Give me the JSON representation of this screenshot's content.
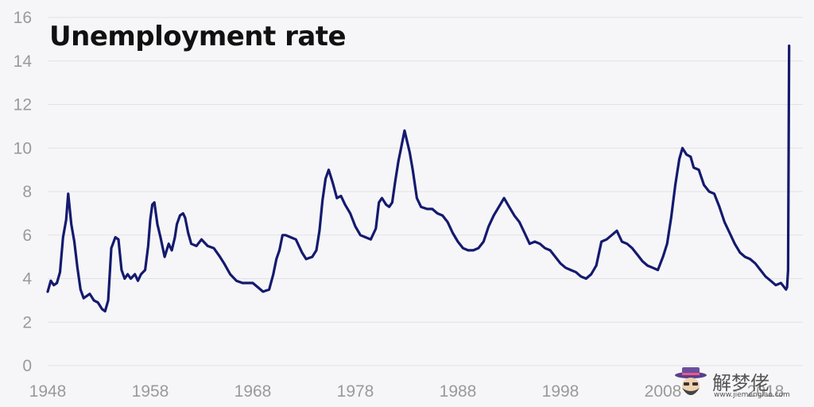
{
  "chart_data": {
    "type": "line",
    "title": "Unemployment rate",
    "xlabel": "",
    "ylabel": "",
    "xlim": [
      1948,
      2020.4
    ],
    "ylim": [
      0,
      16
    ],
    "yticks": [
      0,
      2,
      4,
      6,
      8,
      10,
      12,
      14,
      16
    ],
    "xticks": [
      1948,
      1958,
      1968,
      1978,
      1988,
      1998,
      2008,
      2018
    ],
    "grid": true,
    "legend": "none",
    "line_color": "#141a6e",
    "series": [
      {
        "x": [
          1948.0,
          1948.3,
          1948.6,
          1948.9,
          1949.2,
          1949.5,
          1949.8,
          1950.0,
          1950.3,
          1950.6,
          1950.9,
          1951.2,
          1951.5,
          1951.8,
          1952.1,
          1952.5,
          1952.9,
          1953.3,
          1953.6,
          1953.9,
          1954.2,
          1954.6,
          1954.9,
          1955.2,
          1955.5,
          1955.8,
          1956.1,
          1956.5,
          1956.8,
          1957.1,
          1957.5,
          1957.8,
          1958.0,
          1958.2,
          1958.4,
          1958.7,
          1959.0,
          1959.4,
          1959.8,
          1960.1,
          1960.4,
          1960.6,
          1960.9,
          1961.2,
          1961.4,
          1961.7,
          1962.0,
          1962.5,
          1963.0,
          1963.6,
          1964.2,
          1964.8,
          1965.2,
          1965.8,
          1966.4,
          1967.0,
          1967.5,
          1968.0,
          1968.5,
          1969.0,
          1969.6,
          1970.0,
          1970.3,
          1970.6,
          1970.9,
          1971.2,
          1971.7,
          1972.2,
          1972.8,
          1973.2,
          1973.8,
          1974.2,
          1974.5,
          1974.8,
          1975.1,
          1975.4,
          1975.8,
          1976.2,
          1976.6,
          1977.0,
          1977.5,
          1978.0,
          1978.5,
          1979.0,
          1979.5,
          1980.0,
          1980.3,
          1980.6,
          1981.0,
          1981.3,
          1981.6,
          1981.9,
          1982.2,
          1982.5,
          1982.8,
          1983.0,
          1983.3,
          1983.6,
          1984.0,
          1984.4,
          1985.0,
          1985.5,
          1986.0,
          1986.5,
          1987.0,
          1987.5,
          1988.0,
          1988.5,
          1989.0,
          1989.5,
          1990.0,
          1990.5,
          1991.0,
          1991.5,
          1992.0,
          1992.5,
          1993.0,
          1993.5,
          1994.0,
          1994.5,
          1995.0,
          1995.5,
          1996.0,
          1996.5,
          1997.0,
          1997.5,
          1998.0,
          1998.5,
          1999.0,
          1999.5,
          2000.0,
          2000.5,
          2001.0,
          2001.5,
          2002.0,
          2002.5,
          2003.0,
          2003.5,
          2004.0,
          2004.5,
          2005.0,
          2005.5,
          2006.0,
          2006.5,
          2007.0,
          2007.5,
          2008.0,
          2008.4,
          2008.8,
          2009.2,
          2009.6,
          2009.9,
          2010.3,
          2010.7,
          2011.0,
          2011.5,
          2012.0,
          2012.5,
          2013.0,
          2013.5,
          2014.0,
          2014.5,
          2015.0,
          2015.5,
          2016.0,
          2016.5,
          2017.0,
          2017.5,
          2018.0,
          2018.5,
          2019.0,
          2019.5,
          2020.0,
          2020.1,
          2020.2,
          2020.3
        ],
        "y": [
          3.4,
          3.9,
          3.7,
          3.8,
          4.3,
          5.9,
          6.7,
          7.9,
          6.5,
          5.7,
          4.5,
          3.5,
          3.1,
          3.2,
          3.3,
          3.0,
          2.9,
          2.6,
          2.5,
          3.0,
          5.4,
          5.9,
          5.8,
          4.4,
          4.0,
          4.2,
          4.0,
          4.2,
          3.9,
          4.2,
          4.4,
          5.5,
          6.7,
          7.4,
          7.5,
          6.5,
          5.9,
          5.0,
          5.6,
          5.3,
          5.9,
          6.5,
          6.9,
          7.0,
          6.8,
          6.1,
          5.6,
          5.5,
          5.8,
          5.5,
          5.4,
          5.0,
          4.7,
          4.2,
          3.9,
          3.8,
          3.8,
          3.8,
          3.6,
          3.4,
          3.5,
          4.2,
          4.9,
          5.3,
          6.0,
          6.0,
          5.9,
          5.8,
          5.2,
          4.9,
          5.0,
          5.3,
          6.2,
          7.6,
          8.6,
          9.0,
          8.4,
          7.7,
          7.8,
          7.4,
          7.0,
          6.4,
          6.0,
          5.9,
          5.8,
          6.3,
          7.5,
          7.7,
          7.4,
          7.3,
          7.5,
          8.5,
          9.4,
          10.1,
          10.8,
          10.4,
          9.8,
          9.0,
          7.7,
          7.3,
          7.2,
          7.2,
          7.0,
          6.9,
          6.6,
          6.1,
          5.7,
          5.4,
          5.3,
          5.3,
          5.4,
          5.7,
          6.4,
          6.9,
          7.3,
          7.7,
          7.3,
          6.9,
          6.6,
          6.1,
          5.6,
          5.7,
          5.6,
          5.4,
          5.3,
          5.0,
          4.7,
          4.5,
          4.4,
          4.3,
          4.1,
          4.0,
          4.2,
          4.6,
          5.7,
          5.8,
          6.0,
          6.2,
          5.7,
          5.6,
          5.4,
          5.1,
          4.8,
          4.6,
          4.5,
          4.4,
          5.0,
          5.6,
          6.8,
          8.3,
          9.5,
          10.0,
          9.7,
          9.6,
          9.1,
          9.0,
          8.3,
          8.0,
          7.9,
          7.3,
          6.6,
          6.1,
          5.6,
          5.2,
          5.0,
          4.9,
          4.7,
          4.4,
          4.1,
          3.9,
          3.7,
          3.8,
          3.5,
          3.6,
          4.4,
          14.7
        ]
      }
    ]
  },
  "watermark": {
    "icon": "bearded-man-hat-icon",
    "text_cn": "解梦佬",
    "url": "www.jiemenglao.com"
  }
}
